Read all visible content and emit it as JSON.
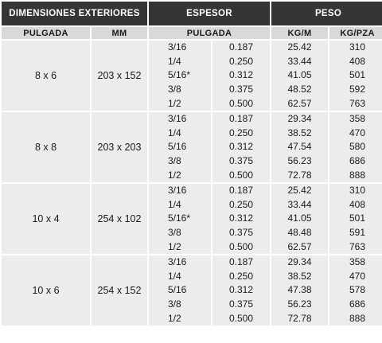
{
  "header": {
    "dimensiones_exteriores": "DIMENSIONES EXTERIORES",
    "espesor": "ESPESOR",
    "peso": "PESO"
  },
  "subheader": {
    "pulgada": "PULGADA",
    "mm": "MM",
    "espesor_pulgada": "PULGADA",
    "kg_m": "KG/M",
    "kg_pza": "KG/PZA"
  },
  "groups": [
    {
      "pulgada": "8 x 6",
      "mm": "203 x 152",
      "rows": [
        {
          "frac": "3/16",
          "dec": "0.187",
          "kg_m": "25.42",
          "kg_pza": "310"
        },
        {
          "frac": "1/4",
          "dec": "0.250",
          "kg_m": "33.44",
          "kg_pza": "408"
        },
        {
          "frac": "5/16*",
          "dec": "0.312",
          "kg_m": "41.05",
          "kg_pza": "501"
        },
        {
          "frac": "3/8",
          "dec": "0.375",
          "kg_m": "48.52",
          "kg_pza": "592"
        },
        {
          "frac": "1/2",
          "dec": "0.500",
          "kg_m": "62.57",
          "kg_pza": "763"
        }
      ]
    },
    {
      "pulgada": "8 x 8",
      "mm": "203  x 203",
      "rows": [
        {
          "frac": "3/16",
          "dec": "0.187",
          "kg_m": "29.34",
          "kg_pza": "358"
        },
        {
          "frac": "1/4",
          "dec": "0.250",
          "kg_m": "38.52",
          "kg_pza": "470"
        },
        {
          "frac": "5/16",
          "dec": "0.312",
          "kg_m": "47.54",
          "kg_pza": "580"
        },
        {
          "frac": "3/8",
          "dec": "0.375",
          "kg_m": "56.23",
          "kg_pza": "686"
        },
        {
          "frac": "1/2",
          "dec": "0.500",
          "kg_m": "72.78",
          "kg_pza": "888"
        }
      ]
    },
    {
      "pulgada": "10 x 4",
      "mm": "254 x 102",
      "rows": [
        {
          "frac": "3/16",
          "dec": "0.187",
          "kg_m": "25.42",
          "kg_pza": "310"
        },
        {
          "frac": "1/4",
          "dec": "0.250",
          "kg_m": "33.44",
          "kg_pza": "408"
        },
        {
          "frac": "5/16*",
          "dec": "0.312",
          "kg_m": "41.05",
          "kg_pza": "501"
        },
        {
          "frac": "3/8",
          "dec": "0.375",
          "kg_m": "48.48",
          "kg_pza": "591"
        },
        {
          "frac": "1/2",
          "dec": "0.500",
          "kg_m": "62.57",
          "kg_pza": "763"
        }
      ]
    },
    {
      "pulgada": "10 x 6",
      "mm": "254 x 152",
      "rows": [
        {
          "frac": "3/16",
          "dec": "0.187",
          "kg_m": "29.34",
          "kg_pza": "358"
        },
        {
          "frac": "1/4",
          "dec": "0.250",
          "kg_m": "38.52",
          "kg_pza": "470"
        },
        {
          "frac": "5/16",
          "dec": "0.312",
          "kg_m": "47.38",
          "kg_pza": "578"
        },
        {
          "frac": "3/8",
          "dec": "0.375",
          "kg_m": "56.23",
          "kg_pza": "686"
        },
        {
          "frac": "1/2",
          "dec": "0.500",
          "kg_m": "72.78",
          "kg_pza": "888"
        }
      ]
    }
  ]
}
